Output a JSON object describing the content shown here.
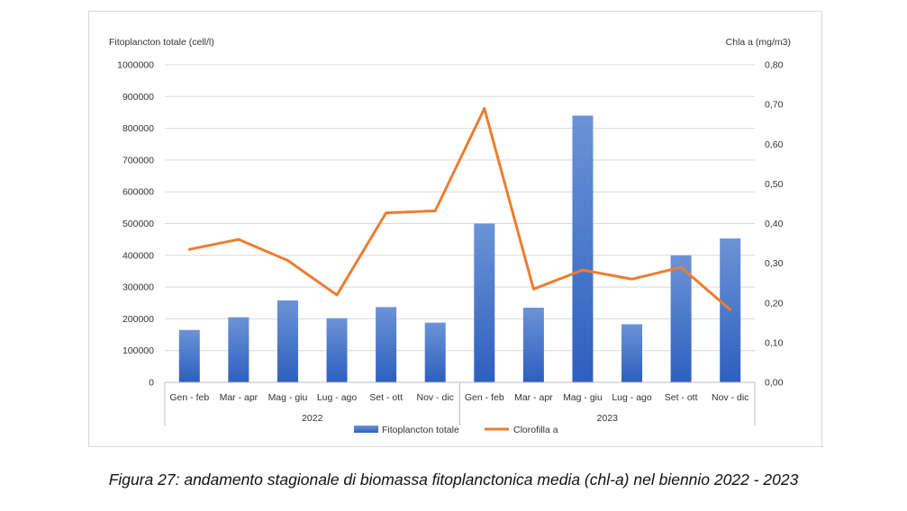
{
  "chart_data": {
    "type": "bar+line",
    "y_left_label": "Fitoplancton totale (cell/l)",
    "y_right_label": "Chla a (mg/m3)",
    "y_left_ticks": [
      "0",
      "100000",
      "200000",
      "300000",
      "400000",
      "500000",
      "600000",
      "700000",
      "800000",
      "900000",
      "1000000"
    ],
    "y_right_ticks": [
      "0,00",
      "0,10",
      "0,20",
      "0,30",
      "0,40",
      "0,50",
      "0,60",
      "0,70",
      "0,80"
    ],
    "ylim_left": [
      0,
      1000000
    ],
    "ylim_right": [
      0,
      0.8
    ],
    "categories": [
      "Gen - feb",
      "Mar - apr",
      "Mag - giu",
      "Lug - ago",
      "Set - ott",
      "Nov - dic",
      "Gen - feb",
      "Mar - apr",
      "Mag - giu",
      "Lug - ago",
      "Set - ott",
      "Nov - dic"
    ],
    "groups": [
      {
        "label": "2022",
        "span": 6
      },
      {
        "label": "2023",
        "span": 6
      }
    ],
    "series": [
      {
        "name": "Fitoplancton totale",
        "type": "bar",
        "axis": "left",
        "color": "#4472C4",
        "values": [
          165000,
          205000,
          258000,
          202000,
          237000,
          188000,
          500000,
          235000,
          840000,
          183000,
          400000,
          453000
        ]
      },
      {
        "name": "Clorofilla a",
        "type": "line",
        "axis": "right",
        "color": "#ED7D31",
        "values": [
          0.335,
          0.36,
          0.307,
          0.22,
          0.427,
          0.432,
          0.69,
          0.235,
          0.283,
          0.26,
          0.29,
          0.183
        ]
      }
    ],
    "grid": true,
    "legend_position": "bottom"
  },
  "caption": "Figura 27: andamento stagionale di biomassa fitoplanctonica media (chl-a) nel biennio 2022 - 2023"
}
